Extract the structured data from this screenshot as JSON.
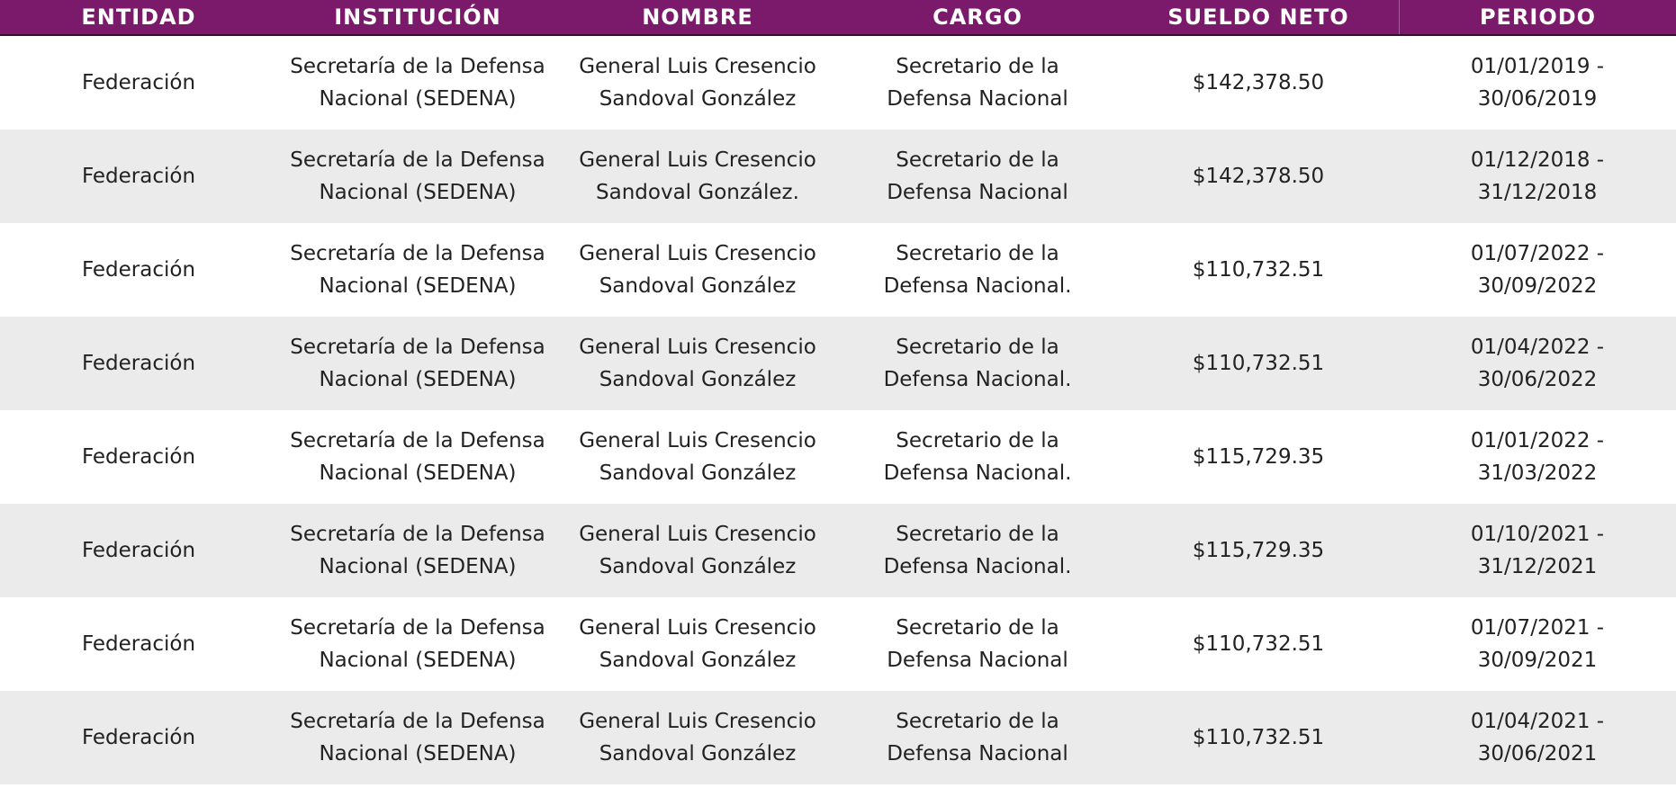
{
  "colors": {
    "header_bg": "#7b1a6a",
    "row_alt_bg": "#ebebeb",
    "row_bg": "#ffffff"
  },
  "table": {
    "columns": [
      "ENTIDAD",
      "INSTITUCIÓN",
      "NOMBRE",
      "CARGO",
      "SUELDO NETO",
      "PERIODO REPORTADO"
    ],
    "rows": [
      [
        "Federación",
        "Secretaría de la Defensa\nNacional (SEDENA)",
        "General Luis Cresencio\nSandoval González",
        "Secretario de la\nDefensa Nacional",
        "$142,378.50",
        "01/01/2019 -\n30/06/2019"
      ],
      [
        "Federación",
        "Secretaría de la Defensa\nNacional (SEDENA)",
        "General Luis Cresencio\nSandoval González.",
        "Secretario de la\nDefensa Nacional",
        "$142,378.50",
        "01/12/2018 -\n31/12/2018"
      ],
      [
        "Federación",
        "Secretaría de la Defensa\nNacional (SEDENA)",
        "General Luis Cresencio\nSandoval González",
        "Secretario de la\nDefensa Nacional.",
        "$110,732.51",
        "01/07/2022 -\n30/09/2022"
      ],
      [
        "Federación",
        "Secretaría de la Defensa\nNacional (SEDENA)",
        "General Luis Cresencio\nSandoval González",
        "Secretario de la\nDefensa Nacional.",
        "$110,732.51",
        "01/04/2022 -\n30/06/2022"
      ],
      [
        "Federación",
        "Secretaría de la Defensa\nNacional (SEDENA)",
        "General Luis Cresencio\nSandoval González",
        "Secretario de la\nDefensa Nacional.",
        "$115,729.35",
        "01/01/2022 -\n31/03/2022"
      ],
      [
        "Federación",
        "Secretaría de la Defensa\nNacional (SEDENA)",
        "General Luis Cresencio\nSandoval González",
        "Secretario de la\nDefensa Nacional.",
        "$115,729.35",
        "01/10/2021 -\n31/12/2021"
      ],
      [
        "Federación",
        "Secretaría de la Defensa\nNacional (SEDENA)",
        "General Luis Cresencio\nSandoval González",
        "Secretario de la\nDefensa Nacional",
        "$110,732.51",
        "01/07/2021 -\n30/09/2021"
      ],
      [
        "Federación",
        "Secretaría de la Defensa\nNacional (SEDENA)",
        "General Luis Cresencio\nSandoval González",
        "Secretario de la\nDefensa Nacional",
        "$110,732.51",
        "01/04/2021 -\n30/06/2021"
      ]
    ]
  }
}
